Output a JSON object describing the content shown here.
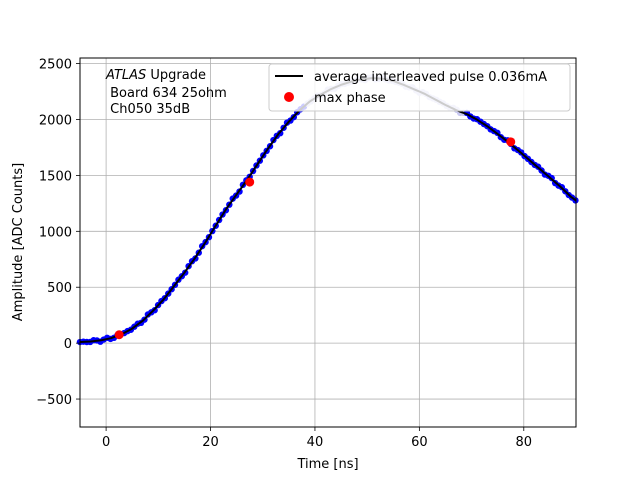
{
  "chart_data": {
    "type": "scatter",
    "xlabel": "Time [ns]",
    "ylabel": "Amplitude [ADC Counts]",
    "xlim": [
      -5,
      90
    ],
    "ylim": [
      -750,
      2550
    ],
    "xticks": [
      0,
      20,
      40,
      60,
      80
    ],
    "yticks": [
      -500,
      0,
      500,
      1000,
      1500,
      2000,
      2500
    ],
    "grid": true,
    "legend_position": "top-right",
    "annotation": {
      "line1_italic": "ATLAS",
      "line1_rest": " Upgrade",
      "line2": " Board 634 25ohm",
      "line3": " Ch050 35dB"
    },
    "colors": {
      "curve": "#000000",
      "samples": "#0000ff",
      "samples_faded": "#c8c8f0",
      "max_phase": "#ff0000",
      "grid": "#b0b0b0"
    },
    "series": [
      {
        "name": "average interleaved pulse 0.036mA",
        "kind": "line",
        "x": [
          -5,
          -3,
          -1,
          1,
          3,
          5,
          7,
          9,
          11,
          13,
          15,
          17,
          19,
          21,
          23,
          25,
          27,
          29,
          31,
          33,
          35,
          37,
          39,
          41,
          43,
          45,
          47,
          49,
          51,
          53,
          55,
          57,
          59,
          61,
          63,
          65,
          67,
          69,
          71,
          73,
          75,
          77,
          79,
          81,
          83,
          85,
          87,
          89,
          90
        ],
        "y": [
          10,
          15,
          25,
          45,
          80,
          130,
          200,
          290,
          390,
          510,
          630,
          760,
          900,
          1050,
          1200,
          1330,
          1460,
          1600,
          1740,
          1870,
          1980,
          2080,
          2160,
          2220,
          2270,
          2310,
          2340,
          2360,
          2370,
          2365,
          2345,
          2310,
          2270,
          2230,
          2180,
          2130,
          2085,
          2050,
          2000,
          1940,
          1870,
          1800,
          1720,
          1640,
          1560,
          1480,
          1400,
          1310,
          1275
        ]
      },
      {
        "name": "max phase",
        "kind": "points",
        "x": [
          2.5,
          27.5,
          77.5
        ],
        "y": [
          75,
          1440,
          1800
        ]
      }
    ]
  }
}
